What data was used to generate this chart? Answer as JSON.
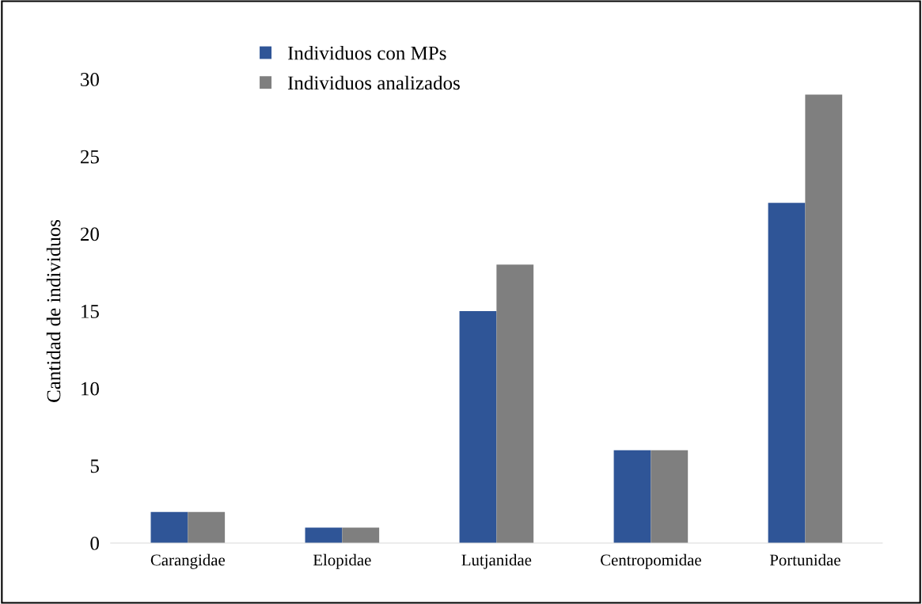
{
  "chart_data": {
    "type": "bar",
    "ylabel": "Cantidad de individuos",
    "categories": [
      "Carangidae",
      "Elopidae",
      "Lutjanidae",
      "Centropomidae",
      "Portunidae"
    ],
    "series": [
      {
        "name": "Individuos con MPs",
        "color": "#2f5597",
        "values": [
          2,
          1,
          15,
          6,
          22
        ]
      },
      {
        "name": "Individuos analizados",
        "color": "#7f7f7f",
        "values": [
          2,
          1,
          18,
          6,
          29
        ]
      }
    ],
    "ylim": [
      0,
      30
    ],
    "yticks": [
      0,
      5,
      10,
      15,
      20,
      25,
      30
    ],
    "grid": false,
    "legend": "top left"
  }
}
